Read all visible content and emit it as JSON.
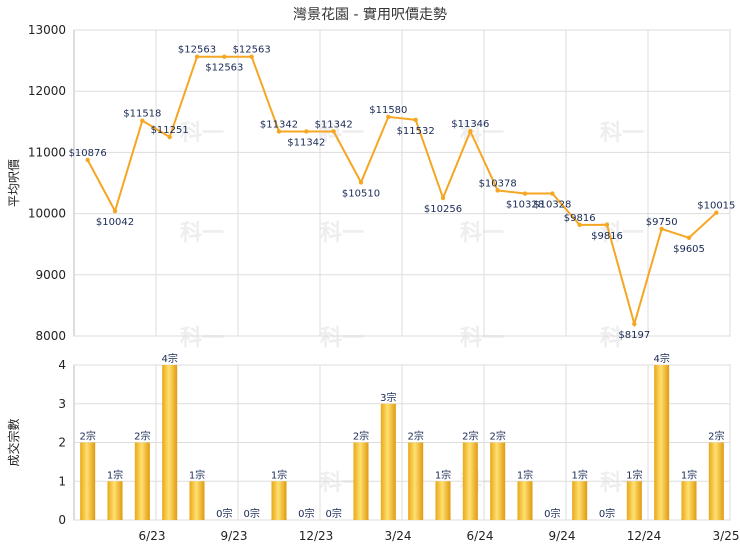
{
  "title": "灣景花園 - 實用呎價走勢",
  "chart_data": [
    {
      "type": "line",
      "ylabel": "平均呎價",
      "ylim": [
        8000,
        13000
      ],
      "yticks": [
        8000,
        9000,
        10000,
        11000,
        12000,
        13000
      ],
      "color": "#f5a623",
      "points": [
        {
          "label": "$10876",
          "value": 10876
        },
        {
          "label": "$10042",
          "value": 10042
        },
        {
          "label": "$11518",
          "value": 11518
        },
        {
          "label": "$11251",
          "value": 11251
        },
        {
          "label": "$12563",
          "value": 12563
        },
        {
          "label": "$12563",
          "value": 12563
        },
        {
          "label": "$12563",
          "value": 12563
        },
        {
          "label": "$11342",
          "value": 11342
        },
        {
          "label": "$11342",
          "value": 11342
        },
        {
          "label": "$11342",
          "value": 11342
        },
        {
          "label": "$10510",
          "value": 10510
        },
        {
          "label": "$11580",
          "value": 11580
        },
        {
          "label": "$11532",
          "value": 11532
        },
        {
          "label": "$10256",
          "value": 10256
        },
        {
          "label": "$11346",
          "value": 11346
        },
        {
          "label": "$10378",
          "value": 10378
        },
        {
          "label": "$10328",
          "value": 10328
        },
        {
          "label": "$10328",
          "value": 10328
        },
        {
          "label": "$9816",
          "value": 9816
        },
        {
          "label": "$9816",
          "value": 9816
        },
        {
          "label": "$8197",
          "value": 8197
        },
        {
          "label": "$9750",
          "value": 9750
        },
        {
          "label": "$9605",
          "value": 9605
        },
        {
          "label": "$10015",
          "value": 10015
        }
      ]
    },
    {
      "type": "bar",
      "ylabel": "成交宗數",
      "ylim": [
        0,
        4
      ],
      "yticks": [
        0,
        1,
        2,
        3,
        4
      ],
      "color": "#f0b020",
      "xticks": [
        "6/23",
        "9/23",
        "12/23",
        "3/24",
        "6/24",
        "9/24",
        "12/24",
        "3/25"
      ],
      "bars": [
        {
          "value": 2,
          "label": "2宗"
        },
        {
          "value": 1,
          "label": "1宗"
        },
        {
          "value": 2,
          "label": "2宗"
        },
        {
          "value": 4,
          "label": "4宗"
        },
        {
          "value": 1,
          "label": "1宗"
        },
        {
          "value": 0,
          "label": "0宗"
        },
        {
          "value": 0,
          "label": "0宗"
        },
        {
          "value": 1,
          "label": "1宗"
        },
        {
          "value": 0,
          "label": "0宗"
        },
        {
          "value": 0,
          "label": "0宗"
        },
        {
          "value": 2,
          "label": "2宗"
        },
        {
          "value": 3,
          "label": "3宗"
        },
        {
          "value": 2,
          "label": "2宗"
        },
        {
          "value": 1,
          "label": "1宗"
        },
        {
          "value": 2,
          "label": "2宗"
        },
        {
          "value": 2,
          "label": "2宗"
        },
        {
          "value": 1,
          "label": "1宗"
        },
        {
          "value": 0,
          "label": "0宗"
        },
        {
          "value": 1,
          "label": "1宗"
        },
        {
          "value": 0,
          "label": "0宗"
        },
        {
          "value": 1,
          "label": "1宗"
        },
        {
          "value": 4,
          "label": "4宗"
        },
        {
          "value": 1,
          "label": "1宗"
        },
        {
          "value": 2,
          "label": "2宗"
        }
      ]
    }
  ],
  "watermark": "科一"
}
